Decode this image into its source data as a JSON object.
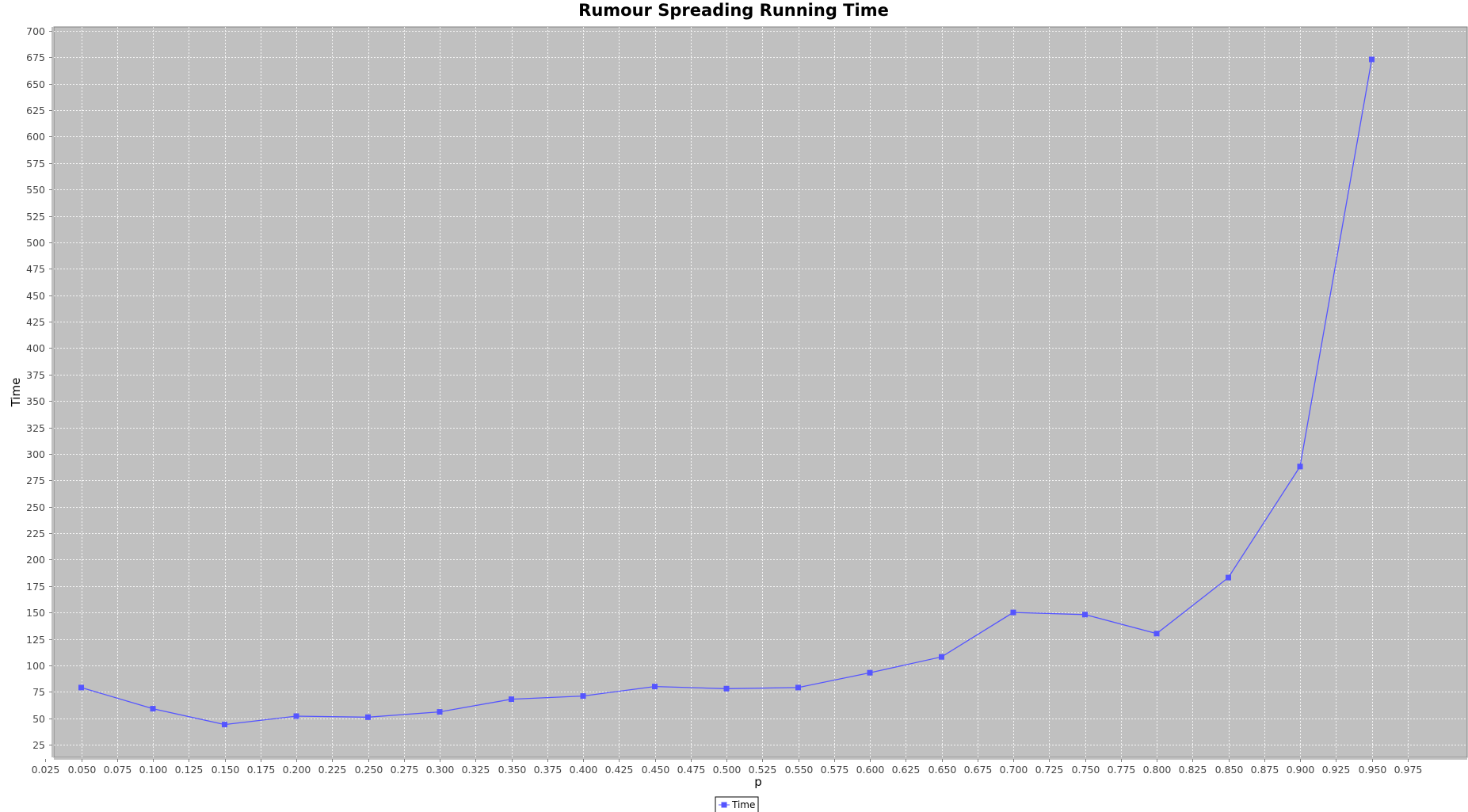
{
  "chart_data": {
    "type": "line",
    "title": "Rumour Spreading Running Time",
    "xlabel": "p",
    "ylabel": "Time",
    "xlim": [
      0.0,
      1.0
    ],
    "ylim": [
      15,
      705
    ],
    "x_ticks": [
      0.025,
      0.05,
      0.075,
      0.1,
      0.125,
      0.15,
      0.175,
      0.2,
      0.225,
      0.25,
      0.275,
      0.3,
      0.325,
      0.35,
      0.375,
      0.4,
      0.425,
      0.45,
      0.475,
      0.5,
      0.525,
      0.55,
      0.575,
      0.6,
      0.625,
      0.65,
      0.675,
      0.7,
      0.725,
      0.75,
      0.775,
      0.8,
      0.825,
      0.85,
      0.875,
      0.9,
      0.925,
      0.95,
      0.975
    ],
    "x_tick_labels": [
      "0.025",
      "0.050",
      "0.075",
      "0.100",
      "0.125",
      "0.150",
      "0.175",
      "0.200",
      "0.225",
      "0.250",
      "0.275",
      "0.300",
      "0.325",
      "0.350",
      "0.375",
      "0.400",
      "0.425",
      "0.450",
      "0.475",
      "0.500",
      "0.525",
      "0.550",
      "0.575",
      "0.600",
      "0.625",
      "0.650",
      "0.675",
      "0.700",
      "0.725",
      "0.750",
      "0.775",
      "0.800",
      "0.825",
      "0.850",
      "0.875",
      "0.900",
      "0.925",
      "0.950",
      "0.975"
    ],
    "y_ticks": [
      25,
      50,
      75,
      100,
      125,
      150,
      175,
      200,
      225,
      250,
      275,
      300,
      325,
      350,
      375,
      400,
      425,
      450,
      475,
      500,
      525,
      550,
      575,
      600,
      625,
      650,
      675,
      700
    ],
    "grid": true,
    "legend_position": "bottom-center",
    "plot_background": "#c0c0c0",
    "series": [
      {
        "name": "Time",
        "color": "#5555ff",
        "marker": "square",
        "x": [
          0.05,
          0.1,
          0.15,
          0.2,
          0.25,
          0.3,
          0.35,
          0.4,
          0.45,
          0.5,
          0.55,
          0.6,
          0.65,
          0.7,
          0.75,
          0.8,
          0.85,
          0.9,
          0.95
        ],
        "y": [
          79,
          59,
          44,
          52,
          51,
          56,
          68,
          71,
          80,
          78,
          79,
          93,
          108,
          150,
          148,
          130,
          183,
          288,
          673
        ]
      }
    ]
  }
}
